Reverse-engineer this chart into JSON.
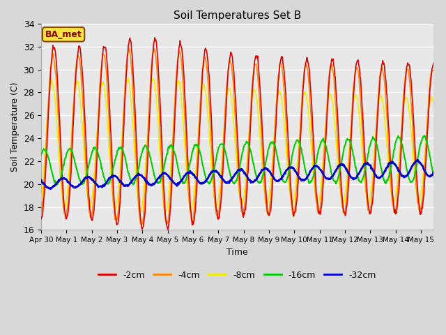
{
  "title": "Soil Temperatures Set B",
  "xlabel": "Time",
  "ylabel": "Soil Temperature (C)",
  "ylim": [
    16,
    34
  ],
  "xlim_days": 15.5,
  "annotation": "BA_met",
  "legend_labels": [
    "-2cm",
    "-4cm",
    "-8cm",
    "-16cm",
    "-32cm"
  ],
  "line_colors": [
    "#dd0000",
    "#ff8800",
    "#eeee00",
    "#00cc00",
    "#0000cc"
  ],
  "line_widths": [
    1.2,
    1.2,
    1.2,
    1.5,
    2.0
  ],
  "fig_bg": "#d8d8d8",
  "plot_bg": "#e8e8e8",
  "grid_color": "#ffffff",
  "x_tick_labels": [
    "Apr 30",
    "May 1",
    "May 2",
    "May 3",
    "May 4",
    "May 5",
    "May 6",
    "May 7",
    "May 8",
    "May 9",
    "May 10",
    "May 11",
    "May 12",
    "May 13",
    "May 14",
    "May 15"
  ],
  "x_tick_positions": [
    0,
    1,
    2,
    3,
    4,
    5,
    6,
    7,
    8,
    9,
    10,
    11,
    12,
    13,
    14,
    15
  ],
  "y_ticks": [
    16,
    18,
    20,
    22,
    24,
    26,
    28,
    30,
    32,
    34
  ]
}
